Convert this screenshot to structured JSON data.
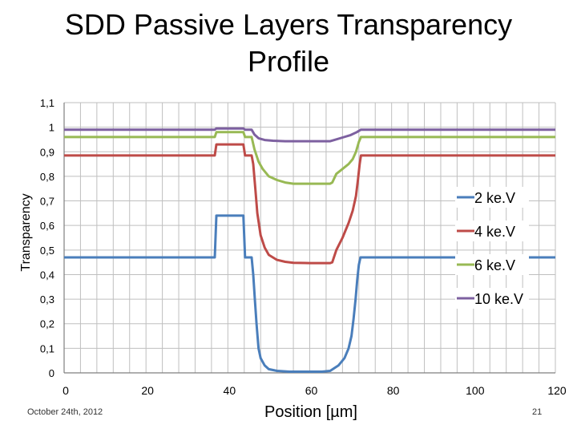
{
  "chart_data": {
    "type": "line",
    "title": [
      "SDD Passive Layers Transparency",
      "Profile"
    ],
    "xlabel": "Position [µm]",
    "ylabel": "Transparency",
    "xlim": [
      0,
      120
    ],
    "ylim": [
      0,
      1.1
    ],
    "xticks": [
      0,
      20,
      40,
      60,
      80,
      100,
      120
    ],
    "xtick_labels": [
      "0",
      "20",
      "40",
      "60",
      "80",
      "100",
      "120"
    ],
    "yticks": [
      0,
      0.1,
      0.2,
      0.3,
      0.4,
      0.5,
      0.6,
      0.7,
      0.8,
      0.9,
      1.0,
      1.1
    ],
    "ytick_labels": [
      "0",
      "0,1",
      "0,2",
      "0,3",
      "0,4",
      "0,5",
      "0,6",
      "0,7",
      "0,8",
      "0,9",
      "1",
      "1,1"
    ],
    "grid": true,
    "legend_position": "right",
    "series": [
      {
        "name": "2 ke.V",
        "color": "#4a7ebb",
        "x": [
          0,
          36.8,
          37.2,
          43.8,
          44.2,
          45.8,
          46.2,
          46.6,
          47,
          47.5,
          48,
          49,
          50,
          52,
          55,
          60,
          63,
          65,
          67,
          68.5,
          69.5,
          70.2,
          70.7,
          71.2,
          71.6,
          72,
          72.4,
          120
        ],
        "y": [
          0.47,
          0.47,
          0.64,
          0.64,
          0.47,
          0.47,
          0.4,
          0.3,
          0.2,
          0.1,
          0.06,
          0.03,
          0.015,
          0.008,
          0.005,
          0.005,
          0.005,
          0.008,
          0.03,
          0.06,
          0.1,
          0.15,
          0.22,
          0.3,
          0.38,
          0.44,
          0.47,
          0.47
        ]
      },
      {
        "name": "4 ke.V",
        "color": "#be4b48",
        "x": [
          0,
          36.8,
          37.2,
          43.8,
          44.2,
          45.8,
          46.2,
          46.7,
          47.2,
          48,
          49,
          50,
          52,
          54,
          56,
          60,
          65,
          65.5,
          66.5,
          68,
          69.5,
          70.5,
          71.3,
          71.8,
          72.2,
          72.5,
          120
        ],
        "y": [
          0.885,
          0.885,
          0.93,
          0.93,
          0.885,
          0.885,
          0.85,
          0.75,
          0.65,
          0.56,
          0.51,
          0.48,
          0.46,
          0.452,
          0.448,
          0.447,
          0.447,
          0.45,
          0.5,
          0.55,
          0.61,
          0.66,
          0.72,
          0.79,
          0.85,
          0.885,
          0.885
        ]
      },
      {
        "name": "6 ke.V",
        "color": "#98b954",
        "x": [
          0,
          36.8,
          37.2,
          43.8,
          44.2,
          45.8,
          46.5,
          47.5,
          48.5,
          50,
          52,
          54,
          56,
          60,
          65,
          65.5,
          66.5,
          68,
          69.5,
          70.5,
          71.3,
          72,
          72.5,
          120
        ],
        "y": [
          0.96,
          0.96,
          0.98,
          0.98,
          0.96,
          0.96,
          0.91,
          0.86,
          0.83,
          0.8,
          0.785,
          0.775,
          0.77,
          0.77,
          0.77,
          0.775,
          0.81,
          0.83,
          0.85,
          0.87,
          0.9,
          0.94,
          0.96,
          0.96
        ]
      },
      {
        "name": "10 ke.V",
        "color": "#7d60a0",
        "x": [
          0,
          36.8,
          37.2,
          43.8,
          44.2,
          45.8,
          46.5,
          47.5,
          49,
          51,
          54,
          60,
          65,
          66,
          68,
          70,
          71.5,
          72.5,
          120
        ],
        "y": [
          0.99,
          0.99,
          0.995,
          0.995,
          0.99,
          0.99,
          0.97,
          0.955,
          0.948,
          0.945,
          0.943,
          0.943,
          0.943,
          0.948,
          0.958,
          0.968,
          0.98,
          0.99,
          0.99
        ]
      }
    ]
  },
  "footer": {
    "date": "October 24th, 2012",
    "page_number": "21"
  }
}
